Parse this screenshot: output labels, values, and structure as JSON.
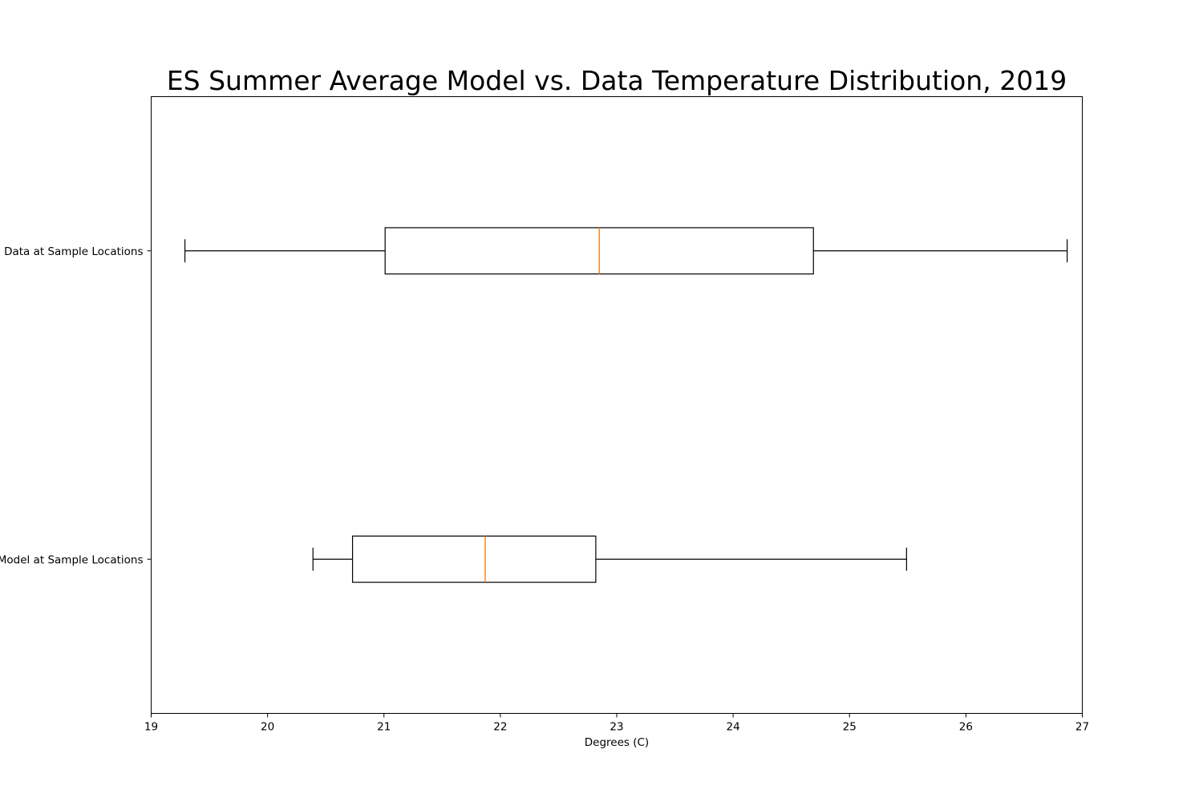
{
  "chart_data": {
    "type": "boxplot",
    "orientation": "horizontal",
    "title": "ES Summer Average Model vs. Data Temperature Distribution, 2019",
    "xlabel": "Degrees (C)",
    "ylabel": "",
    "xlim": [
      19,
      27
    ],
    "x_ticks": [
      19,
      20,
      21,
      22,
      23,
      24,
      25,
      26,
      27
    ],
    "grid": false,
    "legend": "none",
    "colors": {
      "box": "#000000",
      "median": "#ff7f0e",
      "whisker": "#000000"
    },
    "categories": [
      "Data at Sample Locations",
      "Model at Sample Locations"
    ],
    "boxes": [
      {
        "label": "Data at Sample Locations",
        "whislo": 19.29,
        "q1": 21.01,
        "med": 22.85,
        "q3": 24.69,
        "whishi": 26.87
      },
      {
        "label": "Model at Sample Locations",
        "whislo": 20.39,
        "q1": 20.73,
        "med": 21.87,
        "q3": 22.82,
        "whishi": 25.49
      }
    ]
  }
}
